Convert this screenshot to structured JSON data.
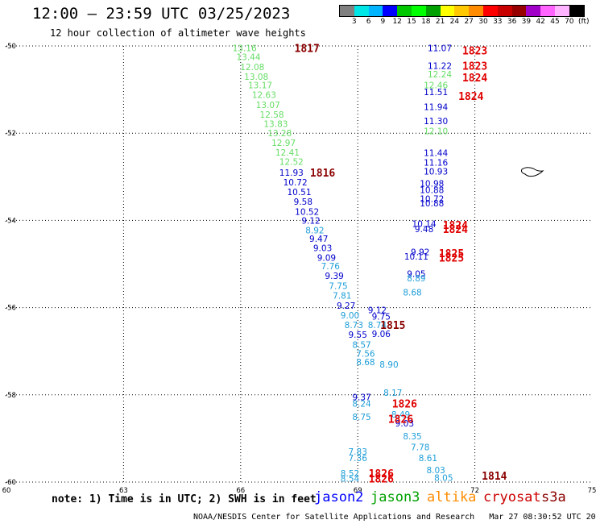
{
  "header": {
    "title": "12:00 – 23:59 UTC 03/25/2023",
    "subtitle": "12 hour collection of altimeter wave heights"
  },
  "legend": {
    "colors": [
      "#808080",
      "#00e6e6",
      "#00b4ff",
      "#0000ff",
      "#00c800",
      "#00ff00",
      "#00a000",
      "#ffff00",
      "#ffc800",
      "#ff8c00",
      "#ff0000",
      "#c80000",
      "#960000",
      "#a000c8",
      "#ff64ff",
      "#ffb4ff",
      "#000000"
    ],
    "labels": [
      "3",
      "6",
      "9",
      "12",
      "15",
      "18",
      "21",
      "24",
      "27",
      "30",
      "33",
      "36",
      "39",
      "42",
      "45",
      "70"
    ],
    "unit": "(ft)"
  },
  "axes": {
    "x_ticks": [
      "60",
      "63",
      "66",
      "69",
      "72",
      "75"
    ],
    "y_ticks": [
      "-50",
      "-52",
      "-54",
      "-56",
      "-58",
      "-60"
    ]
  },
  "chart_data": {
    "type": "scatter",
    "title": "12:00 – 23:59 UTC 03/25/2023",
    "subtitle": "12 hour collection of altimeter wave heights",
    "xlim": [
      60,
      75
    ],
    "ylim": [
      -60,
      -50
    ],
    "grid": true,
    "series": [
      {
        "name": "jason2",
        "color": "#0000ff",
        "points": []
      },
      {
        "name": "jason3",
        "color": "#00a000",
        "points": []
      },
      {
        "name": "altika",
        "color": "#ff8c00",
        "points": []
      },
      {
        "name": "cryosat",
        "color": "#cc0000",
        "points": []
      },
      {
        "name": "s3a",
        "color": "#8b0000",
        "points": []
      }
    ],
    "wave_heights": [
      {
        "x": 66.1,
        "y": -50.05,
        "v": "13.16",
        "color": "#66dd66"
      },
      {
        "x": 66.2,
        "y": -50.25,
        "v": "13.44",
        "color": "#66dd66"
      },
      {
        "x": 66.3,
        "y": -50.48,
        "v": "12.08",
        "color": "#66dd66"
      },
      {
        "x": 66.4,
        "y": -50.7,
        "v": "13.08",
        "color": "#66dd66"
      },
      {
        "x": 66.5,
        "y": -50.9,
        "v": "13.17",
        "color": "#66dd66"
      },
      {
        "x": 66.6,
        "y": -51.12,
        "v": "12.63",
        "color": "#66dd66"
      },
      {
        "x": 66.7,
        "y": -51.35,
        "v": "13.07",
        "color": "#66dd66"
      },
      {
        "x": 66.8,
        "y": -51.57,
        "v": "12.58",
        "color": "#66dd66"
      },
      {
        "x": 66.9,
        "y": -51.78,
        "v": "13.83",
        "color": "#66dd66"
      },
      {
        "x": 67.0,
        "y": -52.0,
        "v": "13.28",
        "color": "#66dd66"
      },
      {
        "x": 67.1,
        "y": -52.22,
        "v": "12.97",
        "color": "#66dd66"
      },
      {
        "x": 67.2,
        "y": -52.44,
        "v": "12.41",
        "color": "#66dd66"
      },
      {
        "x": 67.3,
        "y": -52.65,
        "v": "12.52",
        "color": "#66dd66"
      },
      {
        "x": 67.3,
        "y": -52.9,
        "v": "11.93",
        "color": "#0000cc"
      },
      {
        "x": 67.4,
        "y": -53.12,
        "v": "10.72",
        "color": "#0000cc"
      },
      {
        "x": 67.5,
        "y": -53.35,
        "v": "10.51",
        "color": "#0000cc"
      },
      {
        "x": 67.6,
        "y": -53.57,
        "v": "9.58",
        "color": "#0000cc"
      },
      {
        "x": 67.7,
        "y": -53.8,
        "v": "10.52",
        "color": "#0000cc"
      },
      {
        "x": 67.8,
        "y": -54.0,
        "v": "9.12",
        "color": "#0000cc"
      },
      {
        "x": 67.9,
        "y": -54.22,
        "v": "8.92",
        "color": "#1e9ed8"
      },
      {
        "x": 68.0,
        "y": -54.42,
        "v": "9.47",
        "color": "#0000cc"
      },
      {
        "x": 68.1,
        "y": -54.63,
        "v": "9.03",
        "color": "#0000cc"
      },
      {
        "x": 68.2,
        "y": -54.85,
        "v": "9.09",
        "color": "#0000cc"
      },
      {
        "x": 68.3,
        "y": -55.05,
        "v": "7.76",
        "color": "#1e9ed8"
      },
      {
        "x": 68.4,
        "y": -55.27,
        "v": "9.39",
        "color": "#0000cc"
      },
      {
        "x": 68.5,
        "y": -55.5,
        "v": "7.75",
        "color": "#1e9ed8"
      },
      {
        "x": 68.6,
        "y": -55.72,
        "v": "7.81",
        "color": "#1e9ed8"
      },
      {
        "x": 68.7,
        "y": -55.95,
        "v": "9.27",
        "color": "#0000cc"
      },
      {
        "x": 68.8,
        "y": -56.17,
        "v": "9.00",
        "color": "#1e9ed8"
      },
      {
        "x": 68.9,
        "y": -56.4,
        "v": "8.73",
        "color": "#1e9ed8"
      },
      {
        "x": 69.0,
        "y": -56.62,
        "v": "9.55",
        "color": "#0000cc"
      },
      {
        "x": 69.1,
        "y": -56.85,
        "v": "8.57",
        "color": "#1e9ed8"
      },
      {
        "x": 69.2,
        "y": -57.05,
        "v": "7.56",
        "color": "#1e9ed8"
      },
      {
        "x": 69.2,
        "y": -57.25,
        "v": "8.68",
        "color": "#1e9ed8"
      },
      {
        "x": 69.5,
        "y": -56.05,
        "v": "9.12",
        "color": "#0000cc"
      },
      {
        "x": 69.6,
        "y": -56.2,
        "v": "9.75",
        "color": "#0000cc"
      },
      {
        "x": 69.5,
        "y": -56.4,
        "v": "8.74",
        "color": "#1e9ed8"
      },
      {
        "x": 69.6,
        "y": -56.6,
        "v": "9.06",
        "color": "#0000cc"
      },
      {
        "x": 69.8,
        "y": -57.3,
        "v": "8.90",
        "color": "#1e9ed8"
      },
      {
        "x": 69.9,
        "y": -57.95,
        "v": "8.17",
        "color": "#1e9ed8"
      },
      {
        "x": 69.1,
        "y": -58.05,
        "v": "9.37",
        "color": "#0000cc"
      },
      {
        "x": 69.1,
        "y": -58.2,
        "v": "8.24",
        "color": "#1e9ed8"
      },
      {
        "x": 69.1,
        "y": -58.5,
        "v": "8.75",
        "color": "#1e9ed8"
      },
      {
        "x": 70.1,
        "y": -58.45,
        "v": "8.49",
        "color": "#1e9ed8"
      },
      {
        "x": 70.2,
        "y": -58.65,
        "v": "9.03",
        "color": "#0000cc"
      },
      {
        "x": 70.4,
        "y": -58.95,
        "v": "8.35",
        "color": "#1e9ed8"
      },
      {
        "x": 70.6,
        "y": -59.2,
        "v": "7.78",
        "color": "#1e9ed8"
      },
      {
        "x": 70.8,
        "y": -59.45,
        "v": "8.61",
        "color": "#1e9ed8"
      },
      {
        "x": 71.0,
        "y": -59.72,
        "v": "8.03",
        "color": "#1e9ed8"
      },
      {
        "x": 71.2,
        "y": -59.9,
        "v": "8.05",
        "color": "#1e9ed8"
      },
      {
        "x": 69.0,
        "y": -59.3,
        "v": "7.83",
        "color": "#1e9ed8"
      },
      {
        "x": 69.0,
        "y": -59.45,
        "v": "7.36",
        "color": "#1e9ed8"
      },
      {
        "x": 68.8,
        "y": -59.8,
        "v": "8.52",
        "color": "#1e9ed8"
      },
      {
        "x": 68.8,
        "y": -59.92,
        "v": "8.54",
        "color": "#1e9ed8"
      },
      {
        "x": 71.1,
        "y": -50.05,
        "v": "11.07",
        "color": "#0000cc"
      },
      {
        "x": 71.1,
        "y": -50.45,
        "v": "11.22",
        "color": "#0000cc"
      },
      {
        "x": 71.1,
        "y": -50.65,
        "v": "12.24",
        "color": "#66dd66"
      },
      {
        "x": 71.0,
        "y": -50.9,
        "v": "12.46",
        "color": "#66dd66"
      },
      {
        "x": 71.0,
        "y": -51.05,
        "v": "11.51",
        "color": "#0000cc"
      },
      {
        "x": 71.0,
        "y": -51.4,
        "v": "11.94",
        "color": "#0000cc"
      },
      {
        "x": 71.0,
        "y": -51.72,
        "v": "11.30",
        "color": "#0000cc"
      },
      {
        "x": 71.0,
        "y": -51.95,
        "v": "12.10",
        "color": "#66dd66"
      },
      {
        "x": 71.0,
        "y": -52.45,
        "v": "11.44",
        "color": "#0000cc"
      },
      {
        "x": 71.0,
        "y": -52.67,
        "v": "11.16",
        "color": "#0000cc"
      },
      {
        "x": 71.0,
        "y": -52.87,
        "v": "10.93",
        "color": "#0000cc"
      },
      {
        "x": 70.9,
        "y": -53.15,
        "v": "10.98",
        "color": "#0000cc"
      },
      {
        "x": 70.9,
        "y": -53.3,
        "v": "10.88",
        "color": "#0000cc"
      },
      {
        "x": 70.9,
        "y": -53.5,
        "v": "10.72",
        "color": "#0000cc"
      },
      {
        "x": 70.9,
        "y": -53.6,
        "v": "10.88",
        "color": "#0000cc"
      },
      {
        "x": 70.7,
        "y": -54.08,
        "v": "10.14",
        "color": "#0000cc"
      },
      {
        "x": 70.7,
        "y": -54.2,
        "v": "9.48",
        "color": "#0000cc"
      },
      {
        "x": 70.6,
        "y": -54.72,
        "v": "9.92",
        "color": "#0000cc"
      },
      {
        "x": 70.5,
        "y": -54.82,
        "v": "10.11",
        "color": "#0000cc"
      },
      {
        "x": 70.5,
        "y": -55.22,
        "v": "9.05",
        "color": "#0000cc"
      },
      {
        "x": 70.5,
        "y": -55.32,
        "v": "8.89",
        "color": "#1e9ed8"
      },
      {
        "x": 70.4,
        "y": -55.65,
        "v": "8.68",
        "color": "#1e9ed8"
      }
    ],
    "revolutions": [
      {
        "x": 67.7,
        "y": -50.05,
        "v": "1817",
        "color": "#8b0000"
      },
      {
        "x": 72.0,
        "y": -50.1,
        "v": "1823",
        "color": "#e00000"
      },
      {
        "x": 72.0,
        "y": -50.45,
        "v": "1823",
        "color": "#e00000"
      },
      {
        "x": 72.0,
        "y": -50.72,
        "v": "1824",
        "color": "#e00000"
      },
      {
        "x": 71.9,
        "y": -51.15,
        "v": "1824",
        "color": "#e00000"
      },
      {
        "x": 68.1,
        "y": -52.9,
        "v": "1816",
        "color": "#8b0000"
      },
      {
        "x": 71.5,
        "y": -54.1,
        "v": "1824",
        "color": "#e00000"
      },
      {
        "x": 71.5,
        "y": -54.2,
        "v": "1824",
        "color": "#e00000"
      },
      {
        "x": 71.4,
        "y": -54.75,
        "v": "1825",
        "color": "#e00000"
      },
      {
        "x": 71.4,
        "y": -54.85,
        "v": "1825",
        "color": "#e00000"
      },
      {
        "x": 69.9,
        "y": -56.4,
        "v": "1815",
        "color": "#8b0000"
      },
      {
        "x": 70.2,
        "y": -58.2,
        "v": "1826",
        "color": "#e00000"
      },
      {
        "x": 70.1,
        "y": -58.55,
        "v": "1826",
        "color": "#e00000"
      },
      {
        "x": 69.6,
        "y": -59.8,
        "v": "1826",
        "color": "#e00000"
      },
      {
        "x": 69.6,
        "y": -59.92,
        "v": "1826",
        "color": "#e00000"
      },
      {
        "x": 72.5,
        "y": -59.85,
        "v": "1814",
        "color": "#8b0000"
      }
    ]
  },
  "footer": {
    "note": "note: 1) Time is in UTC; 2) SWH is in feet",
    "satellites": [
      {
        "name": "jason2",
        "color": "#0000ff"
      },
      {
        "name": "jason3",
        "color": "#00a000"
      },
      {
        "name": "altika",
        "color": "#ff8c00"
      },
      {
        "name": "cryosat",
        "color": "#cc0000"
      },
      {
        "name": "s3a",
        "color": "#8b0000"
      }
    ],
    "credit": "NOAA/NESDIS Center for Satellite Applications and Research   Mar 27 08:30:52 UTC 2023"
  }
}
